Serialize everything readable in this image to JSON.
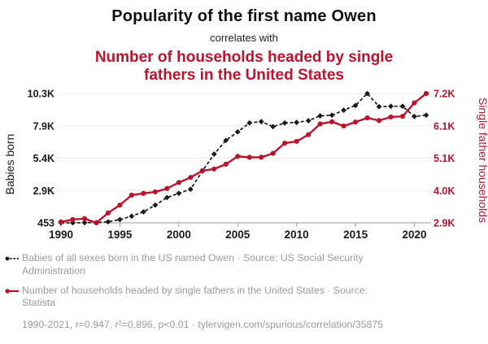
{
  "header": {
    "title": "Popularity of the first name Owen",
    "subtitle": "correlates with",
    "title2": "Number of households headed by single\nfathers in the United States"
  },
  "colors": {
    "accent_red": "#b9142d",
    "series_black": "#1a1a1a",
    "gridline": "#ececec",
    "axis_line": "#999999",
    "legend_text": "#9b9b9b"
  },
  "chart_data": {
    "type": "line",
    "x": [
      1990,
      1991,
      1992,
      1993,
      1994,
      1995,
      1996,
      1997,
      1998,
      1999,
      2000,
      2001,
      2002,
      2003,
      2004,
      2005,
      2006,
      2007,
      2008,
      2009,
      2010,
      2011,
      2012,
      2013,
      2014,
      2015,
      2016,
      2017,
      2018,
      2019,
      2020,
      2021
    ],
    "x_ticks": [
      1990,
      1995,
      2000,
      2005,
      2010,
      2015,
      2020
    ],
    "series": [
      {
        "name": "Babies of all sexes born in the US named Owen",
        "axis": "left",
        "color": "#1a1a1a",
        "style": "dashed",
        "marker": "diamond",
        "values": [
          455,
          453,
          465,
          480,
          530,
          700,
          960,
          1290,
          1800,
          2380,
          2700,
          3010,
          4390,
          5690,
          6730,
          7380,
          8060,
          8160,
          7780,
          8060,
          8100,
          8230,
          8600,
          8650,
          9030,
          9390,
          10300,
          9300,
          9330,
          9330,
          8550,
          8650
        ]
      },
      {
        "name": "Number of households headed by single fathers in the United States",
        "axis": "right",
        "color": "#b9142d",
        "style": "solid",
        "marker": "circle",
        "values": [
          2930,
          3010,
          3040,
          2900,
          3230,
          3490,
          3820,
          3880,
          3930,
          4040,
          4240,
          4410,
          4630,
          4690,
          4850,
          5110,
          5080,
          5080,
          5210,
          5550,
          5610,
          5830,
          6190,
          6260,
          6120,
          6250,
          6390,
          6300,
          6420,
          6440,
          6890,
          7200
        ]
      }
    ],
    "left_axis": {
      "label": "Babies born",
      "min": 453,
      "max": 10300,
      "tick_labels": [
        "453",
        "2.9K",
        "5.4K",
        "7.9K",
        "10.3K"
      ]
    },
    "right_axis": {
      "label": "Single father households",
      "min": 2900,
      "max": 7200,
      "tick_labels": [
        "2.9K",
        "4.0K",
        "5.1K",
        "6.1K",
        "7.2K"
      ]
    },
    "grid": "horizontal",
    "legend_position": "bottom"
  },
  "legend": {
    "series1": "Babies of all sexes born in the US named Owen · Source: US Social Security\nAdministration",
    "series2": "Number of households headed by single fathers in the United States · Source:\nStatista",
    "footnote": "1990-2021, r=0.947, r²=0.896, p<0.01 · tylervigen.com/spurious/correlation/35875"
  }
}
